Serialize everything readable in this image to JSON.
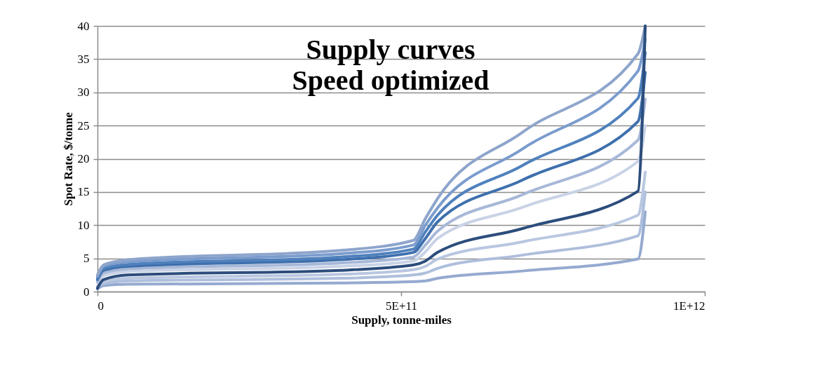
{
  "chart_data": {
    "type": "line",
    "title": "Supply curves\nSpeed optimized",
    "xlabel": "Supply, tonne-miles",
    "ylabel": "Spot Rate, $/tonne",
    "x": [
      0,
      10000000000,
      50000000000,
      400000000000,
      520000000000,
      540000000000,
      560000000000,
      700000000000,
      890000000000,
      902000000000
    ],
    "xlim": [
      0,
      1000000000000
    ],
    "xticks": [
      0,
      {
        "value": 500000000000,
        "label": "5E+11"
      },
      {
        "value": 1000000000000,
        "label": "1E+12"
      }
    ],
    "ylim": [
      0,
      40
    ],
    "yticks": [
      0,
      5,
      10,
      15,
      20,
      25,
      30,
      35,
      40
    ],
    "grid": "y",
    "legend": false,
    "line_style": "solid",
    "series": [
      {
        "color": "#95aad0",
        "values": [
          0.4,
          0.9,
          1.1,
          1.3,
          1.5,
          1.6,
          2.0,
          3.1,
          4.9,
          12
        ]
      },
      {
        "color": "#aebfdc",
        "values": [
          0.6,
          1.2,
          1.6,
          2.0,
          2.5,
          2.8,
          3.5,
          5.5,
          8.4,
          15
        ]
      },
      {
        "color": "#b9c7e0",
        "values": [
          0.8,
          1.5,
          2.0,
          2.6,
          3.3,
          3.8,
          4.9,
          7.5,
          11.5,
          18
        ]
      },
      {
        "color": "#c9d3e6",
        "values": [
          1.3,
          2.4,
          3.0,
          3.8,
          4.6,
          6.0,
          8.0,
          12.7,
          19.6,
          25
        ]
      },
      {
        "color": "#a7b8d8",
        "values": [
          1.5,
          2.8,
          3.4,
          4.3,
          5.2,
          7.0,
          9.1,
          14.6,
          22.8,
          29
        ]
      },
      {
        "color": "#3f70ad",
        "values": [
          1.8,
          3.2,
          3.8,
          4.8,
          5.9,
          8.0,
          10.5,
          16.8,
          25.6,
          33
        ]
      },
      {
        "color": "#4f81bd",
        "values": [
          2.0,
          3.5,
          4.1,
          5.2,
          6.4,
          9.0,
          11.5,
          19.0,
          29.1,
          36
        ]
      },
      {
        "color": "#7b9ccd",
        "values": [
          2.3,
          3.8,
          4.5,
          5.7,
          7.0,
          10.0,
          12.6,
          21.5,
          33.2,
          38
        ]
      },
      {
        "color": "#8ea5cc",
        "values": [
          2.5,
          4.0,
          4.8,
          6.2,
          7.7,
          11.0,
          14.0,
          24.0,
          35.8,
          40
        ]
      },
      {
        "color": "#2c4d7c",
        "values": [
          0.5,
          1.8,
          2.5,
          3.2,
          4.0,
          4.6,
          5.9,
          9.5,
          15.1,
          40
        ]
      }
    ]
  }
}
